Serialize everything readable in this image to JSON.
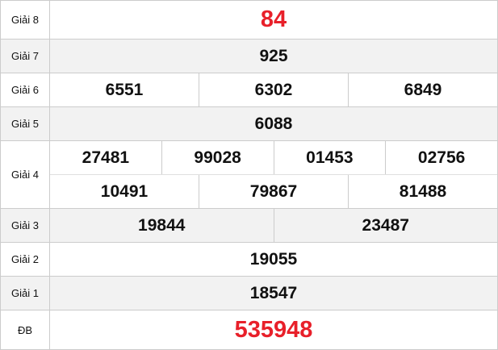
{
  "prizes": [
    {
      "label": "Giải 8",
      "rows": [
        [
          "84"
        ]
      ],
      "highlight": true
    },
    {
      "label": "Giải 7",
      "rows": [
        [
          "925"
        ]
      ]
    },
    {
      "label": "Giải 6",
      "rows": [
        [
          "6551",
          "6302",
          "6849"
        ]
      ]
    },
    {
      "label": "Giải 5",
      "rows": [
        [
          "6088"
        ]
      ]
    },
    {
      "label": "Giải 4",
      "rows": [
        [
          "27481",
          "99028",
          "01453",
          "02756"
        ],
        [
          "10491",
          "79867",
          "81488"
        ]
      ]
    },
    {
      "label": "Giải 3",
      "rows": [
        [
          "19844",
          "23487"
        ]
      ]
    },
    {
      "label": "Giải 2",
      "rows": [
        [
          "19055"
        ]
      ]
    },
    {
      "label": "Giải 1",
      "rows": [
        [
          "18547"
        ]
      ]
    },
    {
      "label": "ĐB",
      "rows": [
        [
          "535948"
        ]
      ],
      "highlight": true
    }
  ],
  "colors": {
    "highlight": "#e8202a",
    "stripe": "#f2f2f2",
    "border": "#cccccc"
  }
}
